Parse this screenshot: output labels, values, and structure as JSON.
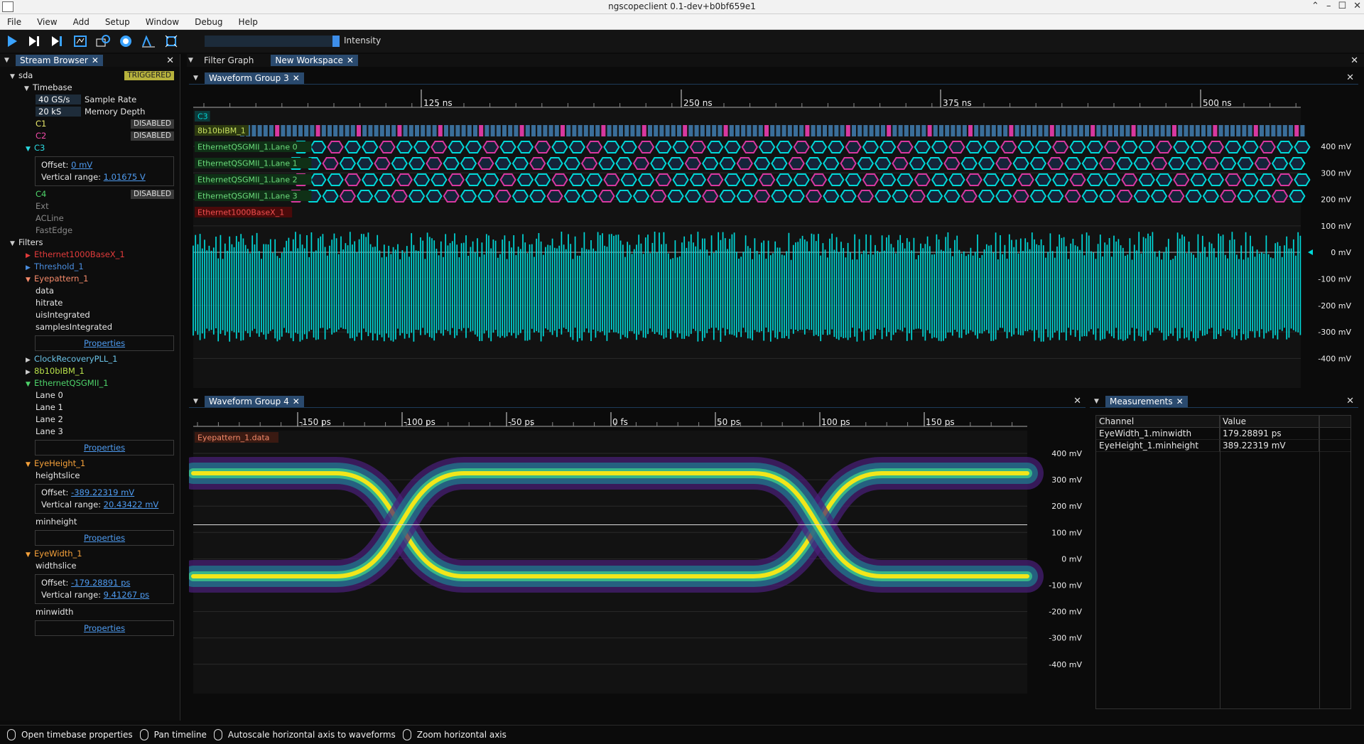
{
  "window": {
    "title": "ngscopeclient 0.1-dev+b0bf659e1",
    "controls": [
      "⌃",
      "–",
      "☐",
      "✕"
    ]
  },
  "menu": [
    "File",
    "View",
    "Add",
    "Setup",
    "Window",
    "Debug",
    "Help"
  ],
  "toolbar": {
    "intensity_label": "Intensity",
    "intensity_level": 1.0
  },
  "stream_browser": {
    "tab": "Stream Browser",
    "scope": "sda",
    "triggered": "TRIGGERED",
    "timebase": "Timebase",
    "sample_rate_value": "40 GS/s",
    "sample_rate_label": "Sample Rate",
    "memory_depth_value": "20 kS",
    "memory_depth_label": "Memory Depth",
    "disabled": "DISABLED",
    "channels": [
      "C1",
      "C2",
      "C3",
      "C4",
      "Ext",
      "ACLine",
      "FastEdge"
    ],
    "offset_label": "Offset:",
    "vrange_label": "Vertical range:",
    "c3_offset": "0 mV",
    "c3_vrange": "1.01675 V",
    "filters": "Filters",
    "f_eth": "Ethernet1000BaseX_1",
    "f_thresh": "Threshold_1",
    "f_eye": "Eyepattern_1",
    "eye_streams": [
      "data",
      "hitrate",
      "uisIntegrated",
      "samplesIntegrated"
    ],
    "properties": "Properties",
    "f_clk": "ClockRecoveryPLL_1",
    "f_8b10b": "8b10bIBM_1",
    "f_qsgmii": "EthernetQSGMII_1",
    "lanes": [
      "Lane 0",
      "Lane 1",
      "Lane 2",
      "Lane 3"
    ],
    "f_eyeheight": "EyeHeight_1",
    "heightslice": "heightslice",
    "eh_offset": "-389.22319 mV",
    "eh_vrange": "20.43422 mV",
    "minheight": "minheight",
    "f_eyewidth": "EyeWidth_1",
    "widthslice": "widthslice",
    "ew_offset": "-179.28891 ps",
    "ew_vrange": "9.41267 ps",
    "minwidth": "minwidth"
  },
  "main_tabs": [
    "Filter Graph",
    "New Workspace"
  ],
  "group3": {
    "title": "Waveform Group 3",
    "xticks": [
      "125 ns",
      "250 ns",
      "375 ns",
      "500 ns"
    ],
    "yticks": [
      "400 mV",
      "300 mV",
      "200 mV",
      "100 mV",
      "0 mV",
      "-100 mV",
      "-200 mV",
      "-300 mV",
      "-400 mV"
    ],
    "labels": [
      "C3",
      "8b10bIBM_1",
      "EthernetQSGMII_1.Lane 0",
      "EthernetQSGMII_1.Lane 1",
      "EthernetQSGMII_1.Lane 2",
      "EthernetQSGMII_1.Lane 3",
      "Ethernet1000BaseX_1"
    ]
  },
  "group4": {
    "title": "Waveform Group 4",
    "xticks": [
      "-150 ps",
      "-100 ps",
      "-50 ps",
      "0 fs",
      "50 ps",
      "100 ps",
      "150 ps"
    ],
    "yticks": [
      "400 mV",
      "300 mV",
      "200 mV",
      "100 mV",
      "0 mV",
      "-100 mV",
      "-200 mV",
      "-300 mV",
      "-400 mV"
    ],
    "label": "Eyepattern_1.data"
  },
  "measurements": {
    "title": "Measurements",
    "headers": [
      "Channel",
      "Value"
    ],
    "rows": [
      {
        "channel": "EyeWidth_1.minwidth",
        "value": "179.28891 ps"
      },
      {
        "channel": "EyeHeight_1.minheight",
        "value": "389.22319 mV"
      }
    ]
  },
  "statusbar": [
    "Open timebase properties",
    "Pan timeline",
    "Autoscale horizontal axis to waveforms",
    "Zoom horizontal axis"
  ],
  "colors": {
    "accent": "#2a4a6e",
    "cyan": "#00d8d8",
    "magenta": "#d838a0",
    "eye_yellow": "#f2e61a"
  }
}
